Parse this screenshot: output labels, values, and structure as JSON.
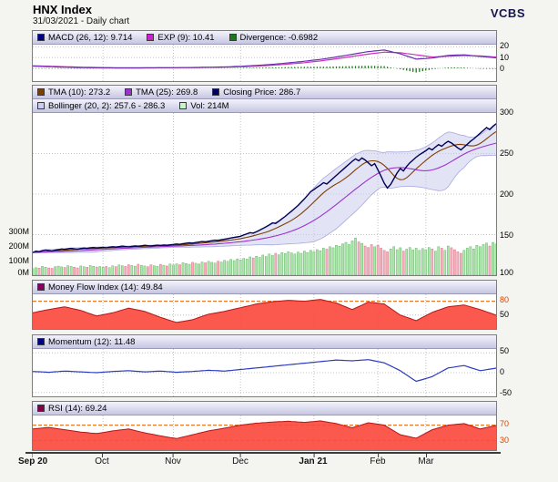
{
  "header": {
    "title": "HNX Index",
    "subtitle": "31/03/2021 - Daily chart",
    "brand": "VCBS"
  },
  "legends": {
    "macd": [
      {
        "label": "MACD (26, 12): 9.714",
        "color": "#000088"
      },
      {
        "label": "EXP (9): 10.41",
        "color": "#cc22cc"
      },
      {
        "label": "Divergence: -0.6982",
        "color": "#1a7a1a"
      }
    ],
    "main_row1": [
      {
        "label": "TMA (10): 273.2",
        "color": "#7b3f00"
      },
      {
        "label": "TMA (25): 269.8",
        "color": "#9933cc"
      },
      {
        "label": "Closing Price: 286.7",
        "color": "#000066"
      }
    ],
    "main_row2": [
      {
        "label": "Bollinger (20, 2): 257.6 - 286.3",
        "color": "#ccccf5"
      },
      {
        "label": "Vol: 214M",
        "color": "#c8f5c8"
      }
    ],
    "mfi": [
      {
        "label": "Money Flow Index (14): 49.84",
        "color": "#880066"
      }
    ],
    "momentum": [
      {
        "label": "Momentum (12): 11.48",
        "color": "#000088"
      }
    ],
    "rsi": [
      {
        "label": "RSI (14): 69.24",
        "color": "#880044"
      }
    ]
  },
  "colors": {
    "grid": "#c2c2c2",
    "threshold": "#e86000",
    "macd_line": "#6a30b0",
    "exp_line": "#cc33bb",
    "divergence": "#1a7a1a",
    "close_line": "#000055",
    "tma10": "#7b3f00",
    "tma25": "#9933cc",
    "boll_fill": "#ccccee",
    "boll_edge": "#a8a8de",
    "vol_up": "#a8e8a8",
    "vol_up_edge": "#58a858",
    "vol_down": "#f5b0c0",
    "vol_down_edge": "#cc6677",
    "red_fill": "#fb4b3e",
    "red_line": "#b51616",
    "momentum_line": "#2b3bbf"
  },
  "chart_data": {
    "type": "multi-panel daily stock chart (lines, bollinger area, volume bars, histogram, indicator areas)",
    "x_axis": {
      "n_points": 146,
      "month_start_indices": [
        0,
        22,
        44,
        65,
        88,
        108,
        123
      ],
      "labels": [
        {
          "text": "Sep 20",
          "bold": true
        },
        {
          "text": "Oct",
          "bold": false
        },
        {
          "text": "Nov",
          "bold": false
        },
        {
          "text": "Dec",
          "bold": false
        },
        {
          "text": "Jan 21",
          "bold": true
        },
        {
          "text": "Feb",
          "bold": false
        },
        {
          "text": "Mar",
          "bold": false
        }
      ]
    },
    "panels": [
      {
        "id": "macd",
        "ylim": [
          -12,
          22
        ],
        "yticks": [
          "20",
          "10",
          "0"
        ],
        "grid": [
          20,
          10,
          0
        ],
        "thresholds": [],
        "histogram": "macd - macd_signal"
      },
      {
        "id": "price",
        "ylim": [
          100,
          300
        ],
        "yticks": [
          "300",
          "250",
          "200",
          "150",
          "100"
        ],
        "grid": [
          250,
          200,
          150
        ],
        "thresholds": [],
        "vol_ticks": [
          "300M",
          "200M",
          "100M",
          "0M"
        ],
        "volume_ylim_m": [
          0,
          300
        ]
      },
      {
        "id": "mfi",
        "ylim": [
          20,
          95
        ],
        "yticks": [
          "80",
          "50"
        ],
        "grid": [
          50
        ],
        "thresholds": [
          80
        ]
      },
      {
        "id": "momentum",
        "ylim": [
          -60,
          60
        ],
        "yticks": [
          "50",
          "0",
          "-50"
        ],
        "grid": [
          50,
          0,
          -50
        ],
        "thresholds": []
      },
      {
        "id": "rsi",
        "ylim": [
          5,
          95
        ],
        "yticks": [
          "70",
          "30"
        ],
        "grid": [],
        "thresholds": [
          70,
          30
        ]
      }
    ],
    "series": {
      "close": [
        128.0,
        129.5,
        128.8,
        130.2,
        131.0,
        130.5,
        129.8,
        130.8,
        131.5,
        132.2,
        131.8,
        132.5,
        133.0,
        132.4,
        131.9,
        132.8,
        133.4,
        132.9,
        133.6,
        134.0,
        133.5,
        133.9,
        134.3,
        133.8,
        134.5,
        135.0,
        134.6,
        135.2,
        135.8,
        135.3,
        134.9,
        135.5,
        136.0,
        135.6,
        136.2,
        136.8,
        136.3,
        135.9,
        136.5,
        137.0,
        136.6,
        137.2,
        136.8,
        137.4,
        137.9,
        138.4,
        138.0,
        138.8,
        139.3,
        139.9,
        139.5,
        140.2,
        140.8,
        141.5,
        141.0,
        141.8,
        142.5,
        143.2,
        142.8,
        143.6,
        144.3,
        145.0,
        145.8,
        146.5,
        147.2,
        148.0,
        149.5,
        151.0,
        152.5,
        151.8,
        153.5,
        155.5,
        157.5,
        159.8,
        162.0,
        164.5,
        163.8,
        166.5,
        169.5,
        172.5,
        175.8,
        179.0,
        182.5,
        186.0,
        190.0,
        194.0,
        198.5,
        203.0,
        205.5,
        208.5,
        211.0,
        214.0,
        212.5,
        216.0,
        219.5,
        223.0,
        226.5,
        230.0,
        233.5,
        237.0,
        240.5,
        243.5,
        241.0,
        244.5,
        242.0,
        238.5,
        235.0,
        237.5,
        230.0,
        222.0,
        213.5,
        207.5,
        212.0,
        219.0,
        226.0,
        231.5,
        228.5,
        234.0,
        238.5,
        242.0,
        245.5,
        248.5,
        251.0,
        253.5,
        256.5,
        254.5,
        258.0,
        261.0,
        259.0,
        262.5,
        265.0,
        263.0,
        260.0,
        257.0,
        254.5,
        258.0,
        261.5,
        265.0,
        268.0,
        271.5,
        275.0,
        278.5,
        282.0,
        279.5,
        283.5,
        286.7
      ],
      "volume_m": [
        45,
        52,
        48,
        60,
        55,
        50,
        47,
        58,
        62,
        57,
        53,
        65,
        60,
        55,
        50,
        63,
        58,
        54,
        66,
        61,
        56,
        59,
        55,
        60,
        52,
        64,
        58,
        70,
        65,
        60,
        72,
        66,
        62,
        75,
        68,
        63,
        58,
        71,
        65,
        60,
        74,
        68,
        63,
        77,
        70,
        78,
        72,
        85,
        80,
        75,
        88,
        82,
        77,
        90,
        85,
        95,
        88,
        83,
        96,
        90,
        102,
        95,
        108,
        100,
        112,
        105,
        115,
        110,
        125,
        118,
        130,
        122,
        138,
        128,
        145,
        135,
        150,
        140,
        155,
        148,
        160,
        152,
        145,
        158,
        150,
        165,
        155,
        170,
        160,
        175,
        168,
        185,
        178,
        195,
        188,
        205,
        198,
        215,
        225,
        210,
        235,
        255,
        228,
        218,
        200,
        190,
        210,
        195,
        205,
        185,
        170,
        160,
        180,
        195,
        175,
        188,
        165,
        178,
        190,
        172,
        185,
        170,
        182,
        175,
        190,
        180,
        165,
        195,
        185,
        170,
        200,
        188,
        175,
        160,
        150,
        170,
        185,
        195,
        180,
        205,
        195,
        210,
        220,
        200,
        225,
        214
      ],
      "macd": [
        2.0,
        1.5,
        1.0,
        0.6,
        0.4,
        0.3,
        0.2,
        0.3,
        0.4,
        0.5,
        0.7,
        0.9,
        1.2,
        1.8,
        2.6,
        3.6,
        5.0,
        6.5,
        8.2,
        10.5,
        13.0,
        15.5,
        17.0,
        13.5,
        8.5,
        9.5,
        12.0,
        12.5,
        11.0,
        9.714
      ],
      "macd_signal": [
        2.3,
        1.9,
        1.4,
        1.0,
        0.7,
        0.5,
        0.4,
        0.4,
        0.4,
        0.5,
        0.6,
        0.8,
        1.0,
        1.4,
        2.0,
        2.8,
        3.9,
        5.2,
        6.8,
        8.8,
        11.0,
        13.2,
        15.0,
        14.5,
        12.5,
        10.5,
        11.2,
        11.8,
        11.5,
        10.41
      ],
      "mfi": [
        55,
        62,
        68,
        60,
        48,
        55,
        65,
        58,
        45,
        34,
        40,
        52,
        58,
        66,
        74,
        79,
        82,
        80,
        84,
        76,
        62,
        78,
        74,
        50,
        38,
        56,
        68,
        72,
        62,
        49.84
      ],
      "momentum": [
        3,
        1,
        4,
        2,
        0,
        3,
        5,
        2,
        4,
        1,
        3,
        6,
        4,
        8,
        12,
        16,
        20,
        24,
        28,
        32,
        30,
        33,
        25,
        5,
        -22,
        -10,
        12,
        18,
        5,
        11.48
      ],
      "rsi": [
        60,
        64,
        58,
        52,
        48,
        55,
        60,
        50,
        42,
        35,
        45,
        55,
        62,
        70,
        75,
        78,
        80,
        77,
        81,
        74,
        63,
        76,
        70,
        45,
        36,
        58,
        70,
        74,
        60,
        69.24
      ]
    },
    "derived": {
      "tma10": "TMA(10) of close",
      "tma25": "TMA(25) of close",
      "bollinger": "SMA(20) of close +/- 2 std"
    },
    "last_values": {
      "close": 286.7,
      "tma10": 273.2,
      "tma25": 269.8,
      "bollinger_low": 257.6,
      "bollinger_high": 286.3,
      "volume": "214M",
      "macd": 9.714,
      "exp9": 10.41,
      "divergence": -0.6982,
      "mfi": 49.84,
      "momentum": 11.48,
      "rsi": 69.24
    }
  }
}
